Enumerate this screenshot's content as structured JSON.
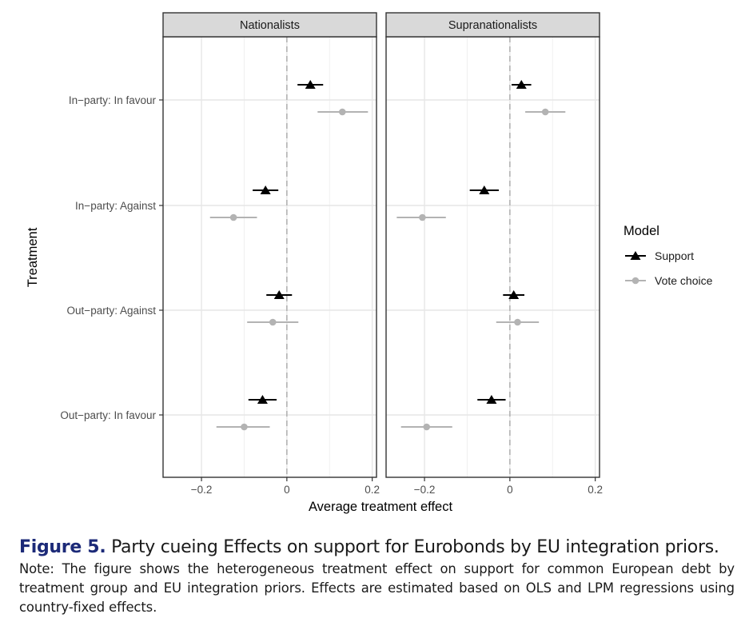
{
  "chart_data": {
    "type": "errorbar",
    "facets": [
      "Nationalists",
      "Supranationalists"
    ],
    "categories": [
      "In−party: In favour",
      "In−party: Against",
      "Out−party: Against",
      "Out−party: In favour"
    ],
    "xlabel": "Average treatment effect",
    "ylabel": "Treatment",
    "xlim": [
      -0.29,
      0.21
    ],
    "x_ticks": [
      -0.2,
      0,
      0.2
    ],
    "x_tick_labels": [
      "−0.2",
      "0",
      "0.2"
    ],
    "reference_line": 0,
    "grid": true,
    "legend": {
      "title": "Model",
      "position": "right"
    },
    "series": [
      {
        "name": "Support",
        "color": "#000000",
        "marker": "triangle",
        "panels": [
          [
            {
              "est": 0.055,
              "lo": 0.025,
              "hi": 0.085
            },
            {
              "est": -0.05,
              "lo": -0.08,
              "hi": -0.02
            },
            {
              "est": -0.018,
              "lo": -0.048,
              "hi": 0.012
            },
            {
              "est": -0.057,
              "lo": -0.09,
              "hi": -0.024
            }
          ],
          [
            {
              "est": 0.027,
              "lo": 0.004,
              "hi": 0.05
            },
            {
              "est": -0.06,
              "lo": -0.094,
              "hi": -0.026
            },
            {
              "est": 0.009,
              "lo": -0.016,
              "hi": 0.034
            },
            {
              "est": -0.043,
              "lo": -0.076,
              "hi": -0.01
            }
          ]
        ]
      },
      {
        "name": "Vote choice",
        "color": "#b3b3b3",
        "marker": "circle",
        "panels": [
          [
            {
              "est": 0.13,
              "lo": 0.072,
              "hi": 0.19
            },
            {
              "est": -0.125,
              "lo": -0.18,
              "hi": -0.07
            },
            {
              "est": -0.033,
              "lo": -0.093,
              "hi": 0.027
            },
            {
              "est": -0.1,
              "lo": -0.165,
              "hi": -0.04
            }
          ],
          [
            {
              "est": 0.083,
              "lo": 0.036,
              "hi": 0.13
            },
            {
              "est": -0.205,
              "lo": -0.265,
              "hi": -0.15
            },
            {
              "est": 0.018,
              "lo": -0.032,
              "hi": 0.068
            },
            {
              "est": -0.195,
              "lo": -0.255,
              "hi": -0.135
            }
          ]
        ]
      }
    ]
  },
  "caption": {
    "figure_label": "Figure 5.",
    "figure_title": "Party cueing Effects on support for Eurobonds by EU integration priors.",
    "note": "Note: The figure shows the heterogeneous treatment effect on support for common European debt by treatment group and EU integration priors. Effects are estimated based on OLS and LPM regressions using country-fixed effects."
  }
}
